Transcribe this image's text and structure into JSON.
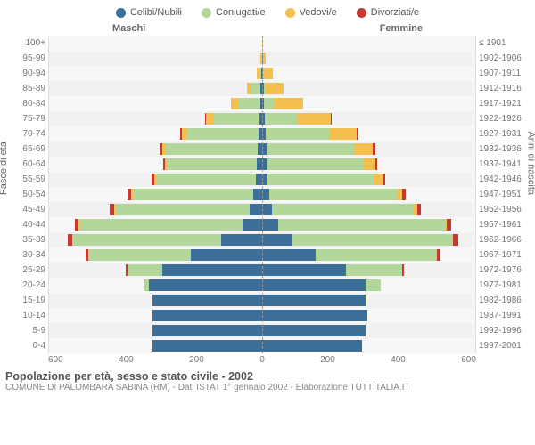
{
  "legend": [
    {
      "label": "Celibi/Nubili",
      "color": "#3b6e99"
    },
    {
      "label": "Coniugati/e",
      "color": "#b3d69b"
    },
    {
      "label": "Vedovi/e",
      "color": "#f3c04f"
    },
    {
      "label": "Divorziati/e",
      "color": "#c43a31"
    }
  ],
  "headers": {
    "left": "Maschi",
    "right": "Femmine"
  },
  "ylabel_left": "Fasce di età",
  "ylabel_right": "Anni di nascita",
  "xmax": 600,
  "xticks_left": [
    600,
    400,
    200,
    0
  ],
  "xticks_right": [
    0,
    200,
    400,
    600
  ],
  "age_labels": [
    "100+",
    "95-99",
    "90-94",
    "85-89",
    "80-84",
    "75-79",
    "70-74",
    "65-69",
    "60-64",
    "55-59",
    "50-54",
    "45-49",
    "40-44",
    "35-39",
    "30-34",
    "25-29",
    "20-24",
    "15-19",
    "10-14",
    "5-9",
    "0-4"
  ],
  "year_labels": [
    "≤ 1901",
    "1902-1906",
    "1907-1911",
    "1912-1916",
    "1917-1921",
    "1922-1926",
    "1927-1931",
    "1932-1936",
    "1937-1941",
    "1942-1946",
    "1947-1951",
    "1952-1956",
    "1957-1961",
    "1962-1966",
    "1967-1971",
    "1972-1976",
    "1977-1981",
    "1982-1986",
    "1987-1991",
    "1992-1996",
    "1997-2001"
  ],
  "data": {
    "male": [
      {
        "celibi": 0,
        "coniugati": 0,
        "vedovi": 0,
        "divorziati": 0
      },
      {
        "celibi": 0,
        "coniugati": 2,
        "vedovi": 3,
        "divorziati": 0
      },
      {
        "celibi": 3,
        "coniugati": 5,
        "vedovi": 8,
        "divorziati": 0
      },
      {
        "celibi": 4,
        "coniugati": 25,
        "vedovi": 15,
        "divorziati": 0
      },
      {
        "celibi": 6,
        "coniugati": 60,
        "vedovi": 22,
        "divorziati": 0
      },
      {
        "celibi": 8,
        "coniugati": 130,
        "vedovi": 20,
        "divorziati": 2
      },
      {
        "celibi": 10,
        "coniugati": 200,
        "vedovi": 15,
        "divorziati": 6
      },
      {
        "celibi": 12,
        "coniugati": 260,
        "vedovi": 10,
        "divorziati": 6
      },
      {
        "celibi": 15,
        "coniugati": 250,
        "vedovi": 8,
        "divorziati": 5
      },
      {
        "celibi": 18,
        "coniugati": 280,
        "vedovi": 5,
        "divorziati": 8
      },
      {
        "celibi": 25,
        "coniugati": 340,
        "vedovi": 4,
        "divorziati": 10
      },
      {
        "celibi": 35,
        "coniugati": 380,
        "vedovi": 2,
        "divorziati": 12
      },
      {
        "celibi": 55,
        "coniugati": 460,
        "vedovi": 2,
        "divorziati": 10
      },
      {
        "celibi": 115,
        "coniugati": 420,
        "vedovi": 1,
        "divorziati": 12
      },
      {
        "celibi": 200,
        "coniugati": 290,
        "vedovi": 0,
        "divorziati": 8
      },
      {
        "celibi": 280,
        "coniugati": 100,
        "vedovi": 0,
        "divorziati": 3
      },
      {
        "celibi": 320,
        "coniugati": 15,
        "vedovi": 0,
        "divorziati": 0
      },
      {
        "celibi": 310,
        "coniugati": 0,
        "vedovi": 0,
        "divorziati": 0
      },
      {
        "celibi": 310,
        "coniugati": 0,
        "vedovi": 0,
        "divorziati": 0
      },
      {
        "celibi": 310,
        "coniugati": 0,
        "vedovi": 0,
        "divorziati": 0
      },
      {
        "celibi": 310,
        "coniugati": 0,
        "vedovi": 0,
        "divorziati": 0
      }
    ],
    "female": [
      {
        "celibi": 0,
        "coniugati": 0,
        "vedovi": 3,
        "divorziati": 0
      },
      {
        "celibi": 2,
        "coniugati": 0,
        "vedovi": 8,
        "divorziati": 0
      },
      {
        "celibi": 3,
        "coniugati": 2,
        "vedovi": 25,
        "divorziati": 0
      },
      {
        "celibi": 5,
        "coniugati": 5,
        "vedovi": 50,
        "divorziati": 0
      },
      {
        "celibi": 6,
        "coniugati": 30,
        "vedovi": 80,
        "divorziati": 0
      },
      {
        "celibi": 8,
        "coniugati": 90,
        "vedovi": 95,
        "divorziati": 2
      },
      {
        "celibi": 10,
        "coniugati": 180,
        "vedovi": 75,
        "divorziati": 6
      },
      {
        "celibi": 12,
        "coniugati": 250,
        "vedovi": 50,
        "divorziati": 6
      },
      {
        "celibi": 14,
        "coniugati": 270,
        "vedovi": 35,
        "divorziati": 5
      },
      {
        "celibi": 16,
        "coniugati": 300,
        "vedovi": 22,
        "divorziati": 8
      },
      {
        "celibi": 20,
        "coniugati": 360,
        "vedovi": 15,
        "divorziati": 10
      },
      {
        "celibi": 28,
        "coniugati": 400,
        "vedovi": 8,
        "divorziati": 12
      },
      {
        "celibi": 45,
        "coniugati": 470,
        "vedovi": 5,
        "divorziati": 12
      },
      {
        "celibi": 85,
        "coniugati": 450,
        "vedovi": 3,
        "divorziati": 14
      },
      {
        "celibi": 150,
        "coniugati": 340,
        "vedovi": 1,
        "divorziati": 10
      },
      {
        "celibi": 235,
        "coniugati": 160,
        "vedovi": 0,
        "divorziati": 4
      },
      {
        "celibi": 290,
        "coniugati": 45,
        "vedovi": 0,
        "divorziati": 0
      },
      {
        "celibi": 290,
        "coniugati": 2,
        "vedovi": 0,
        "divorziati": 0
      },
      {
        "celibi": 295,
        "coniugati": 0,
        "vedovi": 0,
        "divorziati": 0
      },
      {
        "celibi": 290,
        "coniugati": 0,
        "vedovi": 0,
        "divorziati": 0
      },
      {
        "celibi": 280,
        "coniugati": 0,
        "vedovi": 0,
        "divorziati": 0
      }
    ]
  },
  "series_colors": {
    "celibi": "#3b6e99",
    "coniugati": "#b3d69b",
    "vedovi": "#f3c04f",
    "divorziati": "#c43a31"
  },
  "title": "Popolazione per età, sesso e stato civile - 2002",
  "subtitle": "COMUNE DI PALOMBARA SABINA (RM) - Dati ISTAT 1° gennaio 2002 - Elaborazione TUTTITALIA.IT"
}
